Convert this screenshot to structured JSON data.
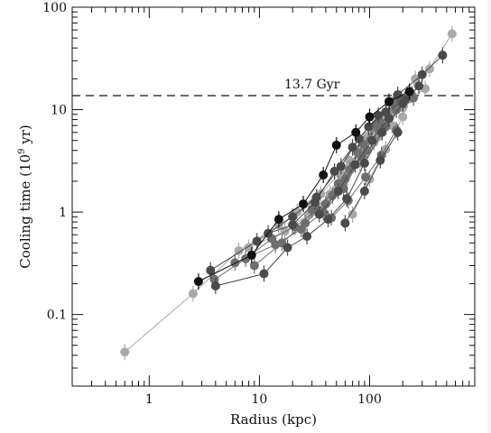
{
  "chart_data": {
    "type": "scatter",
    "xlabel": "Radius (kpc)",
    "ylabel_main": "Cooling time (10",
    "ylabel_sup": "9",
    "ylabel_tail": " yr)",
    "xscale": "log",
    "yscale": "log",
    "xlim": [
      0.2,
      900
    ],
    "ylim": [
      0.02,
      100
    ],
    "x_ticks": [
      {
        "value": 1,
        "label": "1"
      },
      {
        "value": 10,
        "label": "10"
      },
      {
        "value": 100,
        "label": "100"
      }
    ],
    "y_ticks": [
      {
        "value": 0.1,
        "label": "0.1"
      },
      {
        "value": 1,
        "label": "1"
      },
      {
        "value": 10,
        "label": "10"
      },
      {
        "value": 100,
        "label": "100"
      }
    ],
    "reference_line": {
      "y": 13.7,
      "label": "13.7 Gyr",
      "style": "dashed"
    },
    "colors": {
      "black": "#111111",
      "dark": "#4a4a4a",
      "mid": "#6e6e6e",
      "light": "#a9a9a9"
    },
    "series": [
      {
        "color": "light",
        "points": [
          [
            0.6,
            0.043
          ],
          [
            2.5,
            0.16
          ],
          [
            6.5,
            0.42
          ],
          [
            15,
            0.75
          ],
          [
            30,
            1.2
          ],
          [
            60,
            2.2
          ],
          [
            110,
            4.8
          ],
          [
            200,
            10.5
          ],
          [
            350,
            25
          ],
          [
            560,
            55
          ]
        ]
      },
      {
        "color": "black",
        "points": [
          [
            2.8,
            0.21
          ],
          [
            8.5,
            0.38
          ],
          [
            15,
            0.85
          ],
          [
            25,
            1.2
          ],
          [
            38,
            2.3
          ],
          [
            50,
            4.5
          ],
          [
            75,
            6.0
          ],
          [
            100,
            8.5
          ],
          [
            150,
            12
          ],
          [
            230,
            15
          ]
        ]
      },
      {
        "color": "dark",
        "points": [
          [
            3.6,
            0.27
          ],
          [
            9.5,
            0.52
          ],
          [
            20,
            0.9
          ],
          [
            33,
            1.4
          ],
          [
            55,
            2.8
          ],
          [
            80,
            5.2
          ],
          [
            120,
            8.8
          ],
          [
            180,
            14
          ],
          [
            300,
            22
          ],
          [
            460,
            34
          ]
        ]
      },
      {
        "color": "dark",
        "points": [
          [
            4,
            0.19
          ],
          [
            11,
            0.25
          ],
          [
            18,
            0.45
          ],
          [
            27,
            0.58
          ],
          [
            42,
            0.85
          ],
          [
            62,
            1.35
          ],
          [
            90,
            3.0
          ],
          [
            130,
            6.0
          ],
          [
            200,
            11.5
          ],
          [
            280,
            17
          ]
        ]
      },
      {
        "color": "mid",
        "points": [
          [
            3.9,
            0.22
          ],
          [
            7.5,
            0.35
          ],
          [
            13,
            0.55
          ],
          [
            21,
            0.72
          ],
          [
            34,
            1.05
          ],
          [
            52,
            1.9
          ],
          [
            78,
            3.8
          ],
          [
            115,
            7.2
          ],
          [
            165,
            12
          ],
          [
            240,
            14
          ]
        ]
      },
      {
        "color": "mid",
        "points": [
          [
            6,
            0.32
          ],
          [
            14,
            0.48
          ],
          [
            24,
            0.68
          ],
          [
            38,
            1.0
          ],
          [
            58,
            1.7
          ],
          [
            85,
            3.5
          ],
          [
            120,
            6.5
          ],
          [
            170,
            11
          ],
          [
            250,
            13
          ]
        ]
      },
      {
        "color": "light",
        "points": [
          [
            8,
            0.45
          ],
          [
            17,
            0.65
          ],
          [
            28,
            0.95
          ],
          [
            44,
            1.5
          ],
          [
            65,
            3.2
          ],
          [
            96,
            5.5
          ],
          [
            135,
            8.0
          ],
          [
            190,
            13
          ]
        ]
      },
      {
        "color": "dark",
        "points": [
          [
            12,
            0.62
          ],
          [
            20,
            0.75
          ],
          [
            32,
            1.25
          ],
          [
            48,
            2.5
          ],
          [
            70,
            4.3
          ],
          [
            98,
            6.8
          ],
          [
            140,
            9.5
          ],
          [
            210,
            12.5
          ]
        ]
      },
      {
        "color": "mid",
        "points": [
          [
            9,
            0.3
          ],
          [
            16,
            0.5
          ],
          [
            26,
            0.78
          ],
          [
            40,
            1.2
          ],
          [
            60,
            2.1
          ],
          [
            88,
            4.6
          ],
          [
            125,
            7.5
          ],
          [
            175,
            10
          ]
        ]
      },
      {
        "color": "light",
        "points": [
          [
            22,
            1.0
          ],
          [
            36,
            1.5
          ],
          [
            54,
            2.4
          ],
          [
            80,
            3.8
          ],
          [
            110,
            6.2
          ],
          [
            155,
            9.5
          ],
          [
            220,
            12.5
          ],
          [
            320,
            16
          ]
        ]
      },
      {
        "color": "mid",
        "points": [
          [
            30,
            1.05
          ],
          [
            46,
            1.45
          ],
          [
            66,
            2.6
          ],
          [
            95,
            4.0
          ],
          [
            140,
            6.8
          ],
          [
            200,
            11.8
          ]
        ]
      },
      {
        "color": "dark",
        "points": [
          [
            35,
            0.95
          ],
          [
            52,
            1.6
          ],
          [
            74,
            2.9
          ],
          [
            105,
            5.0
          ],
          [
            150,
            8.2
          ]
        ]
      },
      {
        "color": "light",
        "points": [
          [
            40,
            1.2
          ],
          [
            58,
            1.9
          ],
          [
            82,
            3.0
          ],
          [
            118,
            5.4
          ],
          [
            160,
            7.0
          ]
        ]
      },
      {
        "color": "mid",
        "points": [
          [
            45,
            0.88
          ],
          [
            64,
            1.3
          ],
          [
            92,
            2.2
          ],
          [
            128,
            3.6
          ],
          [
            175,
            6.3
          ]
        ]
      },
      {
        "color": "dark",
        "points": [
          [
            60,
            0.78
          ],
          [
            90,
            1.6
          ],
          [
            125,
            3.2
          ],
          [
            180,
            6.0
          ]
        ]
      },
      {
        "color": "light",
        "points": [
          [
            70,
            0.95
          ],
          [
            100,
            2.1
          ],
          [
            140,
            4.1
          ],
          [
            200,
            8.5
          ],
          [
            260,
            20
          ]
        ]
      }
    ]
  }
}
